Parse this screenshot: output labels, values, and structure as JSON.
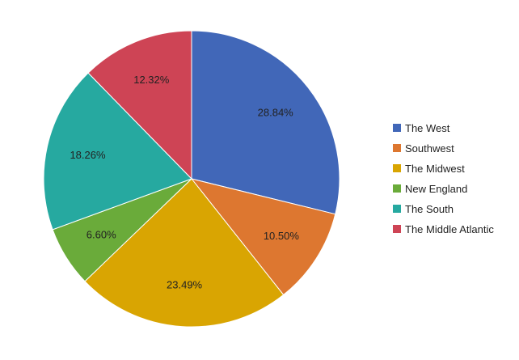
{
  "chart_data": {
    "type": "pie",
    "title": "",
    "legend_position": "right",
    "slices": [
      {
        "label": "The West",
        "value": 28.84,
        "display": "28.84%",
        "color": "#4167b8"
      },
      {
        "label": "Southwest",
        "value": 10.5,
        "display": "10.50%",
        "color": "#dd7730"
      },
      {
        "label": "The Midwest",
        "value": 23.49,
        "display": "23.49%",
        "color": "#d9a502"
      },
      {
        "label": "New England",
        "value": 6.6,
        "display": "6.60%",
        "color": "#6aab3a"
      },
      {
        "label": "The South",
        "value": 18.26,
        "display": "18.26%",
        "color": "#26a9a0"
      },
      {
        "label": "The Middle Atlantic",
        "value": 12.32,
        "display": "12.32%",
        "color": "#ce4455"
      }
    ]
  }
}
